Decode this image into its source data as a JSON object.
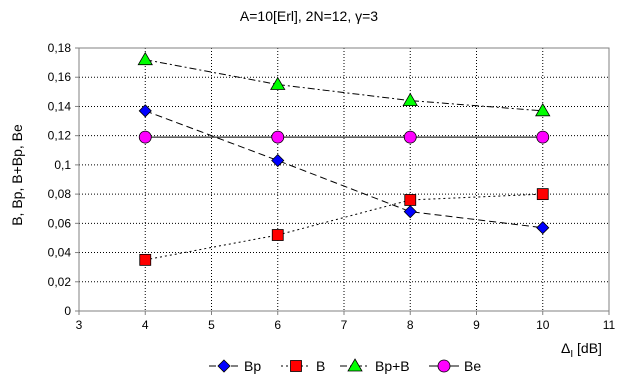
{
  "chart_data": {
    "type": "line",
    "title": "A=10[Erl], 2N=12, γ=3",
    "ylabel": "B, Bp, B+Bp, Be",
    "xlabel_main": "Δ",
    "xlabel_sub": "I",
    "xlabel_unit": " [dB]",
    "xlim": [
      3,
      11
    ],
    "ylim": [
      0,
      0.18
    ],
    "x_ticks": [
      3,
      4,
      5,
      6,
      7,
      8,
      9,
      10,
      11
    ],
    "x_tick_labels": [
      "3",
      "4",
      "5",
      "6",
      "7",
      "8",
      "9",
      "10",
      "11"
    ],
    "y_ticks": [
      0,
      0.02,
      0.04,
      0.06,
      0.08,
      0.1,
      0.12,
      0.14,
      0.16,
      0.18
    ],
    "y_tick_labels": [
      "0",
      "0,02",
      "0,04",
      "0,06",
      "0,08",
      "0,1",
      "0,12",
      "0,14",
      "0,16",
      "0,18"
    ],
    "grid": true,
    "legend_position": "bottom",
    "x": [
      4,
      6,
      8,
      10
    ],
    "series": [
      {
        "name": "Bp",
        "values": [
          0.137,
          0.103,
          0.068,
          0.057
        ],
        "color": "#0000ff",
        "marker": "diamond",
        "line": "dashed"
      },
      {
        "name": "B",
        "values": [
          0.035,
          0.052,
          0.076,
          0.08
        ],
        "color": "#ff0000",
        "marker": "square",
        "line": "dotted"
      },
      {
        "name": "Bp+B",
        "values": [
          0.172,
          0.155,
          0.144,
          0.137
        ],
        "color": "#00ff00",
        "marker": "triangle",
        "line": "dashdot"
      },
      {
        "name": "Be",
        "values": [
          0.119,
          0.119,
          0.119,
          0.119
        ],
        "color": "#ff00ff",
        "marker": "circle",
        "line": "solid"
      }
    ]
  }
}
